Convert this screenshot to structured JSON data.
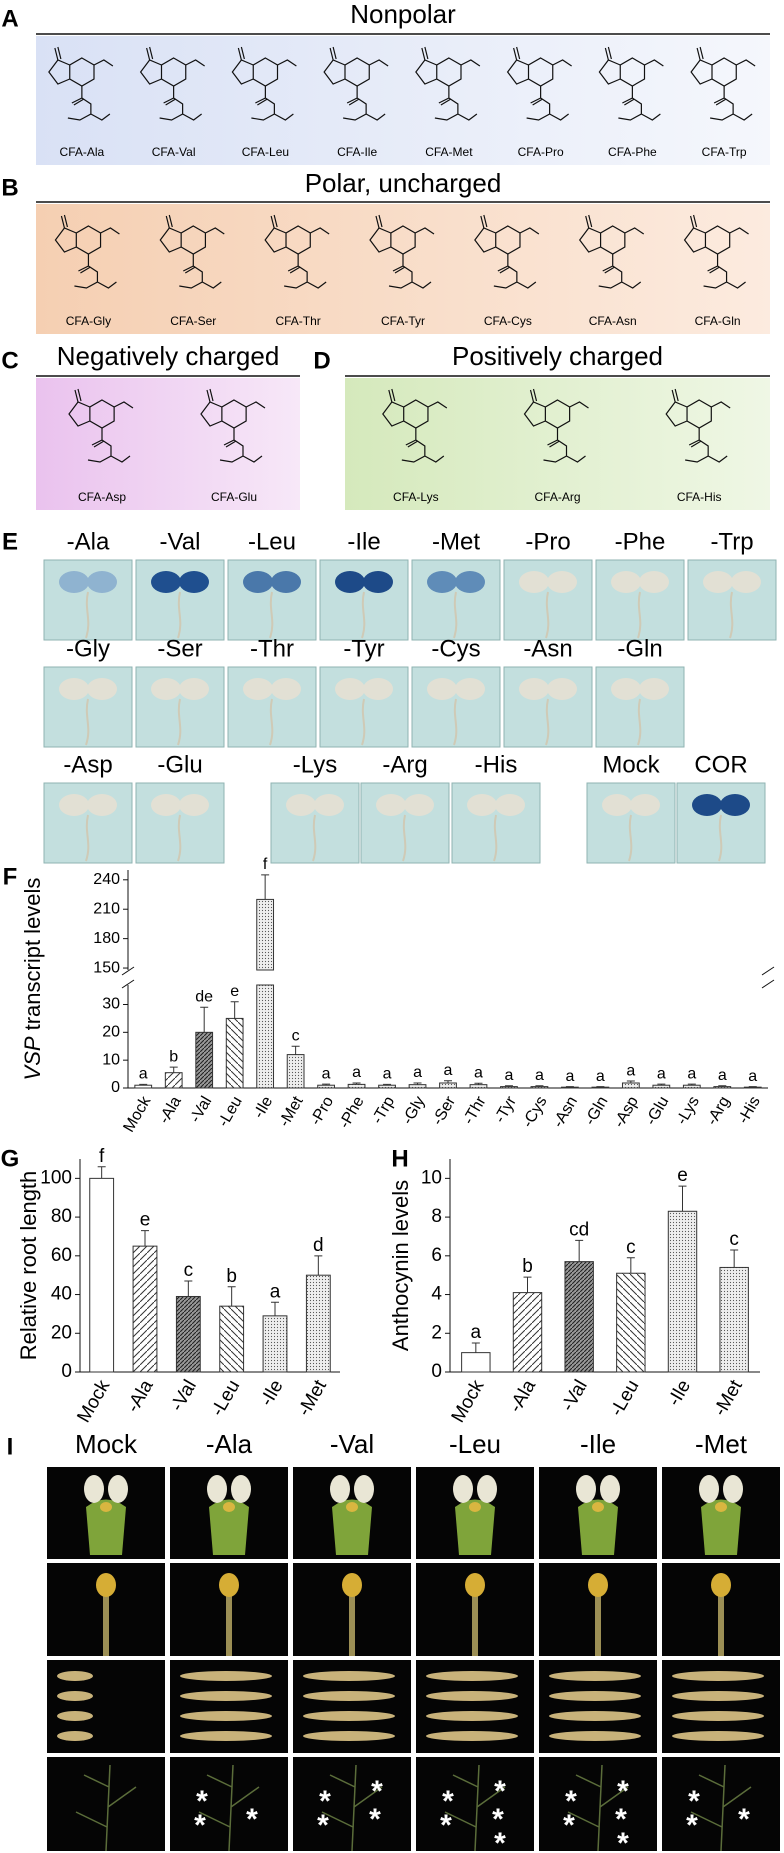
{
  "panels": [
    {
      "letter": "A",
      "title": "Nonpolar",
      "compounds": [
        "CFA-Ala",
        "CFA-Val",
        "CFA-Leu",
        "CFA-Ile",
        "CFA-Met",
        "CFA-Pro",
        "CFA-Phe",
        "CFA-Trp"
      ]
    },
    {
      "letter": "B",
      "title": "Polar, uncharged",
      "compounds": [
        "CFA-Gly",
        "CFA-Ser",
        "CFA-Thr",
        "CFA-Tyr",
        "CFA-Cys",
        "CFA-Asn",
        "CFA-Gln"
      ]
    },
    {
      "letter": "C",
      "title": "Negatively charged",
      "compounds": [
        "CFA-Asp",
        "CFA-Glu"
      ]
    },
    {
      "letter": "D",
      "title": "Positively charged",
      "compounds": [
        "CFA-Lys",
        "CFA-Arg",
        "CFA-His"
      ]
    }
  ],
  "seedlings": {
    "letter": "E",
    "rows": [
      [
        {
          "label": "-Ala",
          "stain": "#8fb3d0"
        },
        {
          "label": "-Val",
          "stain": "#1f4f8f"
        },
        {
          "label": "-Leu",
          "stain": "#4a78aa"
        },
        {
          "label": "-Ile",
          "stain": "#1d4a88"
        },
        {
          "label": "-Met",
          "stain": "#5f8cb8"
        },
        {
          "label": "-Pro",
          "stain": "#e2e0d4"
        },
        {
          "label": "-Phe",
          "stain": "#e2e0d4"
        },
        {
          "label": "-Trp",
          "stain": "#e2e0d4"
        }
      ],
      [
        {
          "label": "-Gly",
          "stain": "#e2e0d4"
        },
        {
          "label": "-Ser",
          "stain": "#e2e0d4"
        },
        {
          "label": "-Thr",
          "stain": "#e2e0d4"
        },
        {
          "label": "-Tyr",
          "stain": "#e2e0d4"
        },
        {
          "label": "-Cys",
          "stain": "#e2e0d4"
        },
        {
          "label": "-Asn",
          "stain": "#e2e0d4"
        },
        {
          "label": "-Gln",
          "stain": "#e2e0d4"
        }
      ],
      [
        {
          "label": "-Asp",
          "stain": "#e2e0d4"
        },
        {
          "label": "-Glu",
          "stain": "#e2e0d4"
        },
        {
          "label": "-Lys",
          "stain": "#e2e0d4"
        },
        {
          "label": "-Arg",
          "stain": "#e2e0d4"
        },
        {
          "label": "-His",
          "stain": "#e2e0d4"
        },
        {
          "label": "Mock",
          "stain": "#e2e0d4"
        },
        {
          "label": "COR",
          "stain": "#1d4a88"
        }
      ]
    ]
  },
  "chart_data": [
    {
      "panel": "F",
      "type": "bar",
      "ylabel_italic": "VSP",
      "ylabel": "transcript levels",
      "categories": [
        "Mock",
        "-Ala",
        "-Val",
        "-Leu",
        "-Ile",
        "-Met",
        "-Pro",
        "-Phe",
        "-Trp",
        "-Gly",
        "-Ser",
        "-Thr",
        "-Tyr",
        "-Cys",
        "-Asn",
        "-Gln",
        "-Asp",
        "-Glu",
        "-Lys",
        "-Arg",
        "-His"
      ],
      "values": [
        1,
        5.5,
        20,
        25,
        220,
        12,
        1,
        1.3,
        1,
        1.2,
        1.8,
        1.2,
        0.5,
        0.5,
        0.3,
        0.3,
        1.8,
        1,
        1,
        0.5,
        0.3
      ],
      "errors": [
        0.3,
        2,
        9,
        6,
        25,
        3,
        0.4,
        0.5,
        0.3,
        0.6,
        0.8,
        0.5,
        0.3,
        0.3,
        0.2,
        0.2,
        0.7,
        0.4,
        0.4,
        0.3,
        0.2
      ],
      "annotations": [
        "a",
        "b",
        "de",
        "e",
        "f",
        "c",
        "a",
        "a",
        "a",
        "a",
        "a",
        "a",
        "a",
        "a",
        "a",
        "a",
        "a",
        "a",
        "a",
        "a",
        "a"
      ],
      "fills": [
        "plain",
        "hatch",
        "dense",
        "back",
        "dots",
        "dots",
        "dots",
        "dots",
        "dots",
        "dots",
        "dots",
        "dots",
        "dots",
        "dots",
        "dots",
        "dots",
        "dots",
        "dots",
        "dots",
        "dots",
        "dots"
      ],
      "ylim": [
        0,
        250
      ],
      "ybreak": [
        37,
        148
      ],
      "yticks": [
        0,
        10,
        20,
        30,
        150,
        180,
        210,
        240
      ]
    },
    {
      "panel": "G",
      "type": "bar",
      "ylabel": "Relative root length",
      "categories": [
        "Mock",
        "-Ala",
        "-Val",
        "-Leu",
        "-Ile",
        "-Met"
      ],
      "values": [
        100,
        65,
        39,
        34,
        29,
        50
      ],
      "errors": [
        6,
        8,
        8,
        10,
        7,
        10
      ],
      "annotations": [
        "f",
        "e",
        "c",
        "b",
        "a",
        "d"
      ],
      "fills": [
        "plain",
        "hatch",
        "dense",
        "back",
        "dots",
        "dots"
      ],
      "ylim": [
        0,
        110
      ],
      "yticks": [
        0,
        20,
        40,
        60,
        80,
        100
      ]
    },
    {
      "panel": "H",
      "type": "bar",
      "ylabel": "Anthocynin levels",
      "categories": [
        "Mock",
        "-Ala",
        "-Val",
        "-Leu",
        "-Ile",
        "-Met"
      ],
      "values": [
        1,
        4.1,
        5.7,
        5.1,
        8.3,
        5.4
      ],
      "errors": [
        0.5,
        0.8,
        1.1,
        0.8,
        1.3,
        0.9
      ],
      "annotations": [
        "a",
        "b",
        "cd",
        "c",
        "e",
        "c"
      ],
      "fills": [
        "plain",
        "hatch",
        "dense",
        "back",
        "dots",
        "dots"
      ],
      "ylim": [
        0,
        11
      ],
      "yticks": [
        0,
        2,
        4,
        6,
        8,
        10
      ]
    }
  ],
  "photos": {
    "letter": "I",
    "marker": "*",
    "columns": [
      {
        "label": "Mock",
        "asterisks": 0
      },
      {
        "label": "-Ala",
        "asterisks": 3
      },
      {
        "label": "-Val",
        "asterisks": 4
      },
      {
        "label": "-Leu",
        "asterisks": 5
      },
      {
        "label": "-Ile",
        "asterisks": 5
      },
      {
        "label": "-Met",
        "asterisks": 3
      }
    ]
  }
}
